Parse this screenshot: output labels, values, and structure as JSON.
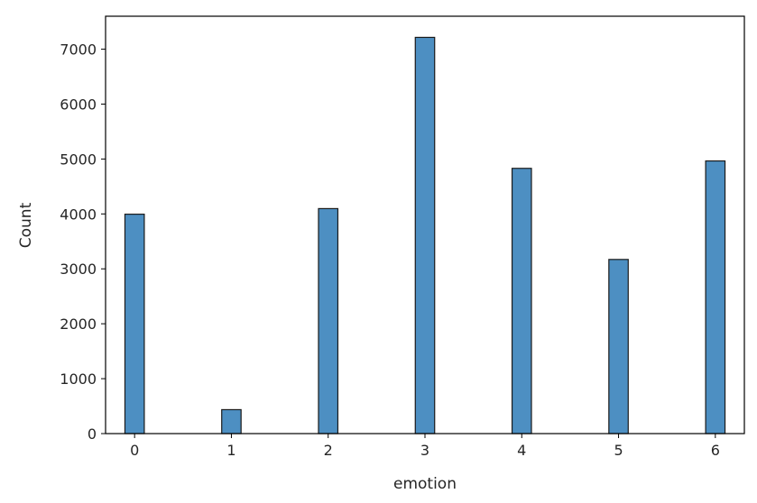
{
  "chart_data": {
    "type": "bar",
    "title": "",
    "xlabel": "emotion",
    "ylabel": "Count",
    "x": [
      0,
      1,
      2,
      3,
      4,
      5,
      6
    ],
    "values": [
      3995,
      436,
      4097,
      7215,
      4830,
      3171,
      4965
    ],
    "xticks": [
      "0",
      "1",
      "2",
      "3",
      "4",
      "5",
      "6"
    ],
    "yticks": [
      "0",
      "1000",
      "2000",
      "3000",
      "4000",
      "5000",
      "6000",
      "7000"
    ],
    "xlim": [
      -0.3,
      6.3
    ],
    "ylim": [
      0,
      7600
    ],
    "grid": false,
    "bar_color": "#4d8fc2",
    "edge_color": "#1a1a1a"
  }
}
